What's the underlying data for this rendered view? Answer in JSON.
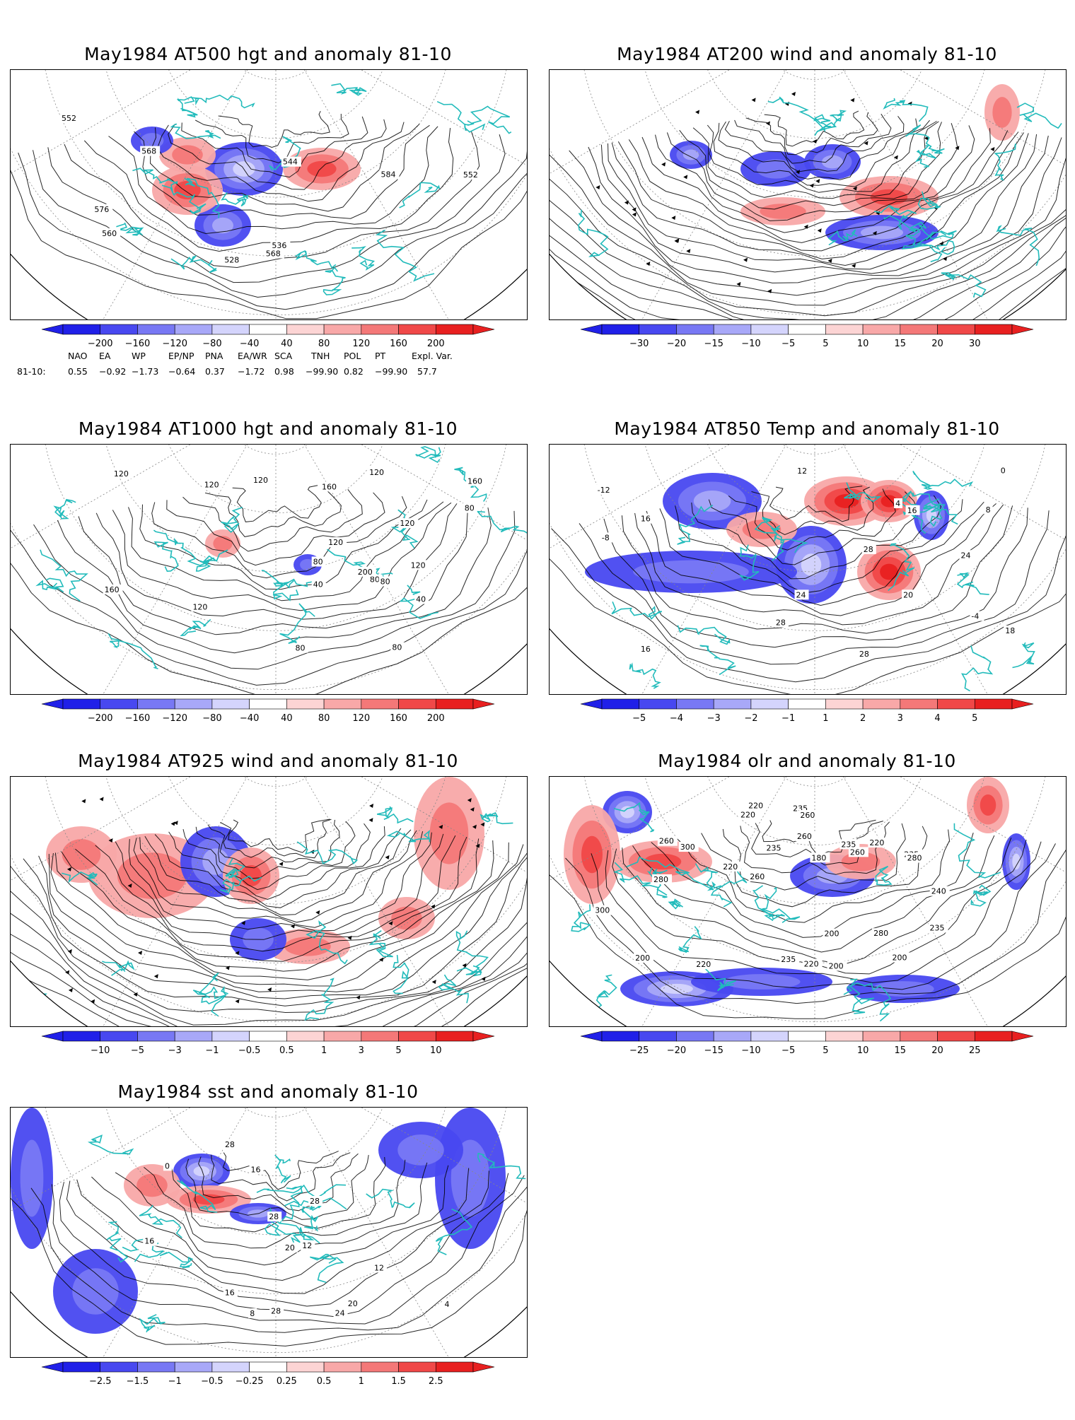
{
  "panels": [
    {
      "id": "p1",
      "title": "May1984 AT500 hgt and anomaly 81-10",
      "kind": "hgt500",
      "labels": [
        "528",
        "536",
        "544",
        "552",
        "552",
        "560",
        "568",
        "576",
        "584",
        "568"
      ],
      "colorbar": [
        "−200",
        "−160",
        "−120",
        "−80",
        "−40",
        "40",
        "80",
        "120",
        "160",
        "200"
      ]
    },
    {
      "id": "p2",
      "title": "May1984 AT200 wind and anomaly 81-10",
      "kind": "wind200",
      "labels": [],
      "colorbar": [
        "−30",
        "−20",
        "−15",
        "−10",
        "−5",
        "5",
        "10",
        "15",
        "20",
        "30"
      ]
    },
    {
      "id": "p3",
      "title": "May1984 AT1000 hgt and anomaly 81-10",
      "kind": "hgt1000",
      "labels": [
        "120",
        "120",
        "160",
        "120",
        "80",
        "120",
        "120",
        "40",
        "80",
        "160",
        "120",
        "200",
        "120",
        "80",
        "80",
        "40",
        "80",
        "160",
        "120",
        "80"
      ],
      "colorbar": [
        "−200",
        "−160",
        "−120",
        "−80",
        "−40",
        "40",
        "80",
        "120",
        "160",
        "200"
      ]
    },
    {
      "id": "p4",
      "title": "May1984 AT850 Temp and anomaly 81-10",
      "kind": "temp850",
      "labels": [
        "-12",
        "-8",
        "-4",
        "0",
        "4",
        "8",
        "12",
        "16",
        "20",
        "24",
        "28",
        "28",
        "24",
        "16",
        "18",
        "28",
        "16"
      ],
      "colorbar": [
        "−5",
        "−4",
        "−3",
        "−2",
        "−1",
        "1",
        "2",
        "3",
        "4",
        "5"
      ]
    },
    {
      "id": "p5",
      "title": "May1984 AT925 wind and anomaly 81-10",
      "kind": "wind925",
      "labels": [],
      "colorbar": [
        "−10",
        "−5",
        "−3",
        "−1",
        "−0.5",
        "0.5",
        "1",
        "3",
        "5",
        "10"
      ]
    },
    {
      "id": "p6",
      "title": "May1984 olr and anomaly 81-10",
      "kind": "olr",
      "labels": [
        "235",
        "220",
        "235",
        "260",
        "200",
        "260",
        "240",
        "180",
        "200",
        "220",
        "235",
        "260",
        "220",
        "200",
        "235",
        "280",
        "260",
        "300",
        "260",
        "280",
        "235",
        "220",
        "200",
        "220",
        "235",
        "280",
        "300",
        "220"
      ],
      "colorbar": [
        "−25",
        "−20",
        "−15",
        "−10",
        "−5",
        "5",
        "10",
        "15",
        "20",
        "25"
      ]
    },
    {
      "id": "p7",
      "title": "May1984 sst and anomaly 81-10",
      "kind": "sst",
      "labels": [
        "28",
        "28",
        "0",
        "4",
        "8",
        "12",
        "16",
        "16",
        "20",
        "20",
        "24",
        "28",
        "28",
        "12",
        "16"
      ],
      "colorbar": [
        "−2.5",
        "−1.5",
        "−1",
        "−0.5",
        "−0.25",
        "0.25",
        "0.5",
        "1",
        "1.5",
        "2.5"
      ]
    }
  ],
  "teleconnection": {
    "headers": [
      "NAO",
      "EA",
      "WP",
      "EP/NP",
      "PNA",
      "EA/WR",
      "SCA",
      "TNH",
      "POL",
      "PT",
      "Expl. Var."
    ],
    "row_label": "81-10:",
    "values": [
      "0.55",
      "−0.92",
      "−1.73",
      "−0.64",
      "0.37",
      "−1.72",
      "0.98",
      "−99.90",
      "0.82",
      "−99.90",
      "57.7"
    ]
  },
  "colors": {
    "negative": [
      "#2020e8",
      "#4848f0",
      "#7878f4",
      "#a8a8f8",
      "#d4d4fc"
    ],
    "positive": [
      "#fcd4d4",
      "#f8a8a8",
      "#f47878",
      "#f04848",
      "#e82020"
    ],
    "coast": "#22bbbb"
  }
}
